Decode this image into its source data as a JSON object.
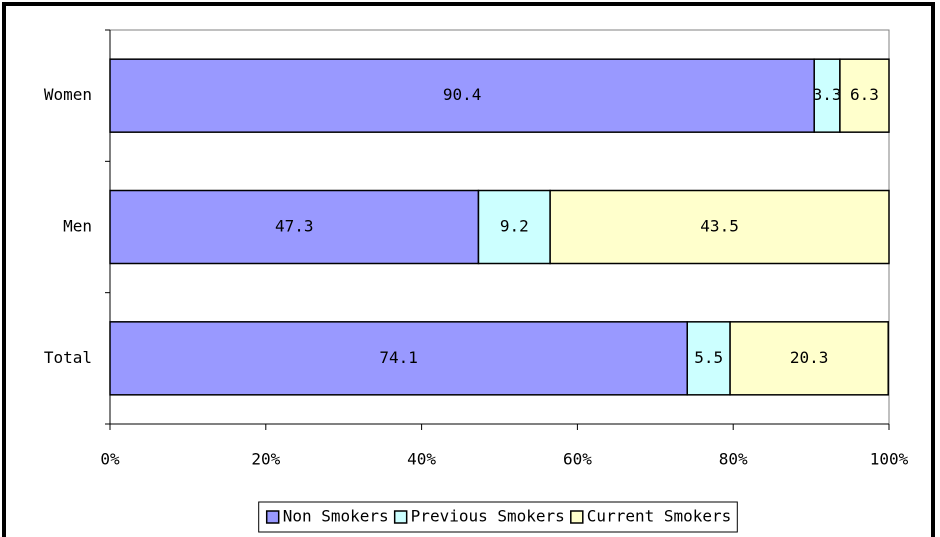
{
  "chart_data": {
    "type": "stacked-barh",
    "categories": [
      "Women",
      "Men",
      "Total"
    ],
    "series": [
      {
        "name": "Non Smokers",
        "color": "#9999ff",
        "values": [
          90.4,
          47.3,
          74.1
        ]
      },
      {
        "name": "Previous Smokers",
        "color": "#ccffff",
        "values": [
          3.3,
          9.2,
          5.5
        ]
      },
      {
        "name": "Current Smokers",
        "color": "#ffffcc",
        "values": [
          6.3,
          43.5,
          20.3
        ]
      }
    ],
    "xlim": [
      0,
      100
    ],
    "xticks": [
      {
        "value": 0,
        "label": "0%"
      },
      {
        "value": 20,
        "label": "20%"
      },
      {
        "value": 40,
        "label": "40%"
      },
      {
        "value": 60,
        "label": "60%"
      },
      {
        "value": 80,
        "label": "80%"
      },
      {
        "value": 100,
        "label": "100%"
      }
    ],
    "legend": "bottom"
  }
}
